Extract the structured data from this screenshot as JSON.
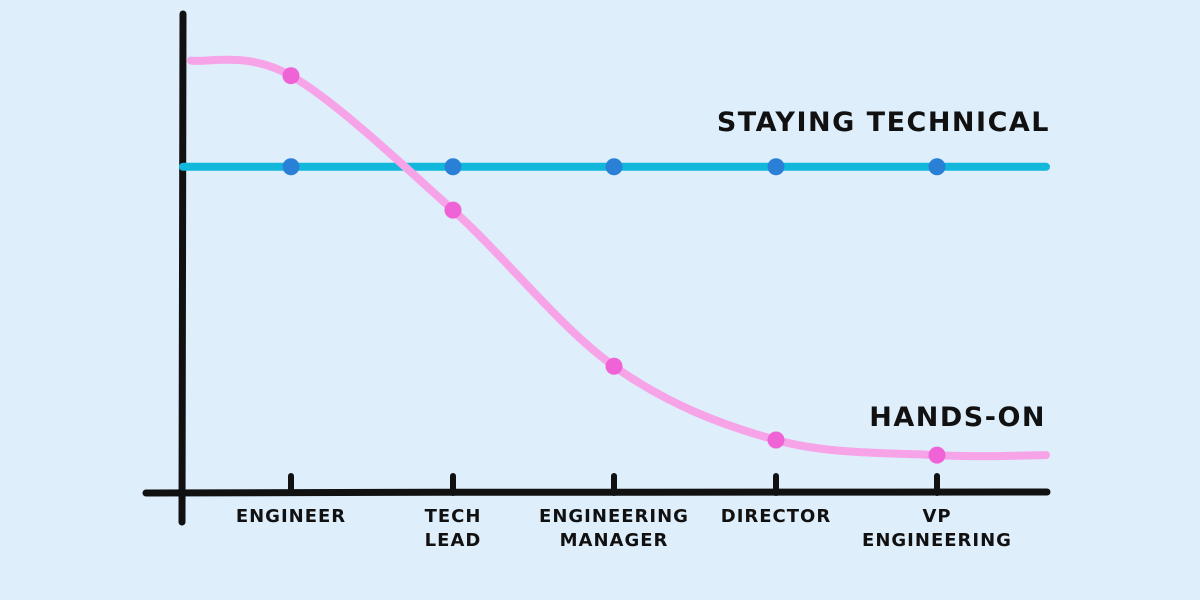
{
  "chart_data": {
    "type": "line",
    "categories": [
      "ENGINEER",
      "TECH LEAD",
      "ENGINEERING MANAGER",
      "DIRECTOR",
      "VP ENGINEERING"
    ],
    "category_lines": [
      [
        "ENGINEER"
      ],
      [
        "TECH",
        "LEAD"
      ],
      [
        "ENGINEERING",
        "MANAGER"
      ],
      [
        "DIRECTOR"
      ],
      [
        "VP",
        "ENGINEERING"
      ]
    ],
    "series": [
      {
        "name": "STAYING TECHNICAL",
        "values": [
          0.75,
          0.75,
          0.75,
          0.75,
          0.75
        ],
        "line_color": "#12b8dc",
        "marker_color": "#2a7fd6",
        "curve": "flat"
      },
      {
        "name": "HANDS-ON",
        "values": [
          0.96,
          0.65,
          0.29,
          0.12,
          0.085
        ],
        "line_color": "#f7a3e8",
        "marker_color": "#ef63d6",
        "curve": "sigmoid"
      }
    ],
    "title": "",
    "xlabel": "",
    "ylabel": "",
    "ylim": [
      0,
      1.1
    ],
    "grid": false,
    "legend": "none",
    "axis_color": "#111111",
    "background": "#deeefb"
  }
}
